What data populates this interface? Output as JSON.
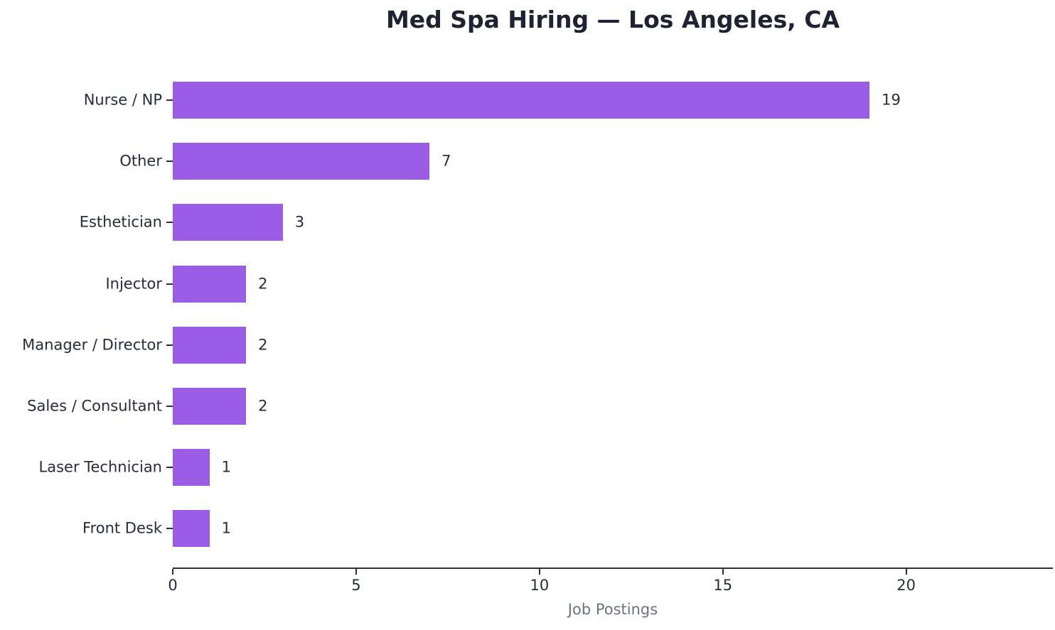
{
  "chart_data": {
    "type": "bar",
    "orientation": "horizontal",
    "title": "Med Spa Hiring — Los Angeles, CA",
    "xlabel": "Job Postings",
    "ylabel": "",
    "categories": [
      "Nurse / NP",
      "Other",
      "Esthetician",
      "Injector",
      "Manager / Director",
      "Sales / Consultant",
      "Laser Technician",
      "Front Desk"
    ],
    "values": [
      19,
      7,
      3,
      2,
      2,
      2,
      1,
      1
    ],
    "value_labels": [
      "19",
      "7",
      "3",
      "2",
      "2",
      "2",
      "1",
      "1"
    ],
    "xlim": [
      0,
      24
    ],
    "xticks": [
      0,
      5,
      10,
      15,
      20
    ],
    "grid": false,
    "legend": null,
    "bar_color": "#9b5de5"
  },
  "colors": {
    "background": "#ffffff",
    "bar": "#9b5de5",
    "title_text": "#1e2233",
    "axis_text": "#272c3e",
    "xlabel_text": "#6b7384",
    "spine": "#2c3040"
  }
}
